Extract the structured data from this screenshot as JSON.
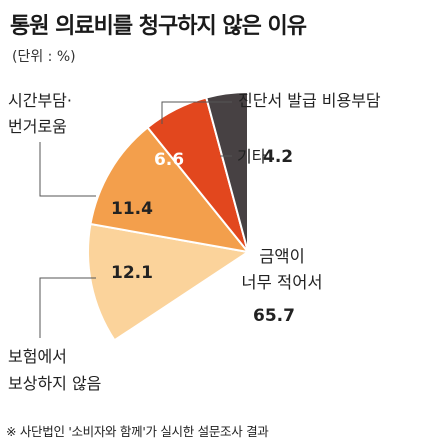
{
  "header": {
    "title": "통원 의료비를 청구하지 않은 이유",
    "unit": "(단위 : %)"
  },
  "footnote": "※ 사단법인 '소비자와 함께'가 실시한 설문조사 결과",
  "chart_data": {
    "type": "pie",
    "title": "통원 의료비를 청구하지 않은 이유",
    "unit": "%",
    "slices": [
      {
        "label": [
          "금액이",
          "너무 적어서"
        ],
        "value": 65.7,
        "value_text": "65.7",
        "color": "#ffffff"
      },
      {
        "label": [
          "보험에서",
          "보상하지 않음"
        ],
        "value": 12.1,
        "value_text": "12.1",
        "color": "#fbd39b"
      },
      {
        "label": [
          "시간부담·",
          "번거로움"
        ],
        "value": 11.4,
        "value_text": "11.4",
        "color": "#f39f4c"
      },
      {
        "label": [
          "진단서 발급 비용부담"
        ],
        "value": 6.6,
        "value_text": "6.6",
        "color": "#e2471e"
      },
      {
        "label": [
          "기타"
        ],
        "value": 4.2,
        "value_text": "4.2",
        "color": "#474143"
      }
    ]
  }
}
